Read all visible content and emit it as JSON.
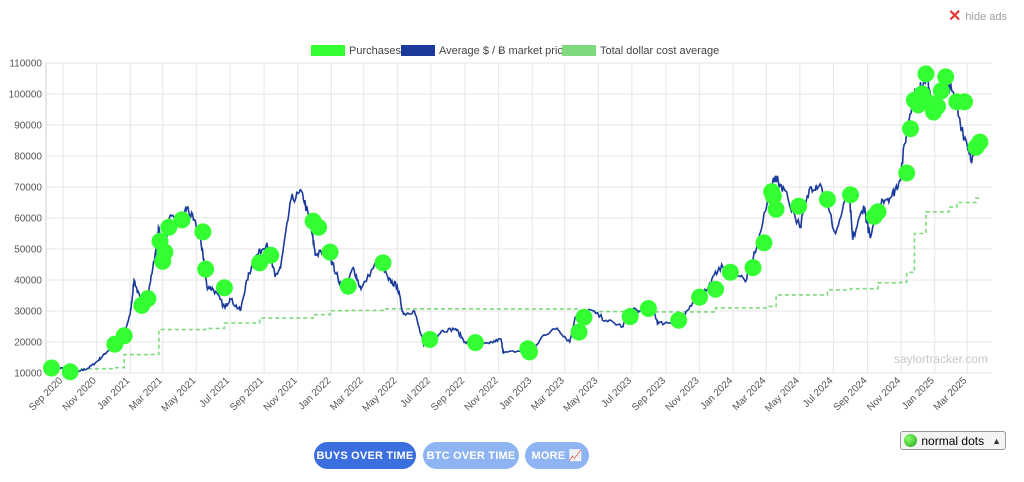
{
  "hide_ads": {
    "icon": "close-icon",
    "label": "hide ads"
  },
  "watermark": "saylortracker.com",
  "buttons": {
    "buys": "BUYS OVER TIME",
    "btc": "BTC OVER TIME",
    "more": "MORE 📈"
  },
  "dot_select": {
    "icon": "green-dot-icon",
    "value": "normal dots"
  },
  "colors": {
    "purchases": "#33ff33",
    "price": "#1a3a9c",
    "cost_avg": "#7fd97f",
    "grid": "#e6e6e6"
  },
  "chart_data": {
    "type": "line",
    "legend": [
      "Purchases",
      "Average $ / Ƀ market price",
      "Total dollar cost average"
    ],
    "legend_position": "top",
    "grid": true,
    "ylim": [
      10000,
      110000
    ],
    "yticks": [
      "10000",
      "20000",
      "30000",
      "40000",
      "50000",
      "60000",
      "70000",
      "80000",
      "90000",
      "100000",
      "110000"
    ],
    "xticks": [
      "Sep 2020",
      "Nov 2020",
      "Jan 2021",
      "Mar 2021",
      "May 2021",
      "Jul 2021",
      "Sep 2021",
      "Nov 2021",
      "Jan 2022",
      "Mar 2022",
      "May 2022",
      "Jul 2022",
      "Sep 2022",
      "Nov 2022",
      "Jan 2023",
      "Mar 2023",
      "May 2023",
      "Jul 2023",
      "Sep 2023",
      "Nov 2023",
      "Jan 2024",
      "Mar 2024",
      "May 2024",
      "Jul 2024",
      "Sep 2024",
      "Nov 2024",
      "Jan 2025",
      "Mar 2025"
    ],
    "series": [
      {
        "name": "Average $ / Ƀ market price",
        "points": [
          [
            "2020-08-15",
            11800
          ],
          [
            "2020-09-01",
            11500
          ],
          [
            "2020-09-15",
            10500
          ],
          [
            "2020-10-01",
            10600
          ],
          [
            "2020-10-15",
            11400
          ],
          [
            "2020-11-01",
            13600
          ],
          [
            "2020-11-15",
            16000
          ],
          [
            "2020-12-01",
            19000
          ],
          [
            "2020-12-15",
            19300
          ],
          [
            "2021-01-01",
            29000
          ],
          [
            "2021-01-08",
            40000
          ],
          [
            "2021-01-20",
            33000
          ],
          [
            "2021-02-01",
            34000
          ],
          [
            "2021-02-15",
            48000
          ],
          [
            "2021-02-22",
            57000
          ],
          [
            "2021-03-01",
            46000
          ],
          [
            "2021-03-13",
            60000
          ],
          [
            "2021-04-01",
            58000
          ],
          [
            "2021-04-14",
            63500
          ],
          [
            "2021-05-01",
            57000
          ],
          [
            "2021-05-12",
            50000
          ],
          [
            "2021-05-20",
            38000
          ],
          [
            "2021-06-01",
            37000
          ],
          [
            "2021-06-22",
            31000
          ],
          [
            "2021-07-01",
            34000
          ],
          [
            "2021-07-20",
            30000
          ],
          [
            "2021-08-01",
            40000
          ],
          [
            "2021-08-15",
            47000
          ],
          [
            "2021-09-06",
            52000
          ],
          [
            "2021-09-21",
            41000
          ],
          [
            "2021-10-01",
            44000
          ],
          [
            "2021-10-20",
            66000
          ],
          [
            "2021-11-10",
            68000
          ],
          [
            "2021-11-25",
            57000
          ],
          [
            "2021-12-04",
            48000
          ],
          [
            "2021-12-25",
            50000
          ],
          [
            "2022-01-10",
            42000
          ],
          [
            "2022-01-24",
            36000
          ],
          [
            "2022-02-10",
            44000
          ],
          [
            "2022-02-24",
            37000
          ],
          [
            "2022-03-28",
            47000
          ],
          [
            "2022-04-15",
            40000
          ],
          [
            "2022-05-01",
            38000
          ],
          [
            "2022-05-12",
            29000
          ],
          [
            "2022-06-01",
            30000
          ],
          [
            "2022-06-18",
            19000
          ],
          [
            "2022-07-01",
            19500
          ],
          [
            "2022-07-20",
            23500
          ],
          [
            "2022-08-15",
            24300
          ],
          [
            "2022-09-01",
            20000
          ],
          [
            "2022-09-20",
            19000
          ],
          [
            "2022-10-15",
            19500
          ],
          [
            "2022-11-05",
            21000
          ],
          [
            "2022-11-10",
            16500
          ],
          [
            "2022-12-15",
            17200
          ],
          [
            "2023-01-01",
            16500
          ],
          [
            "2023-01-20",
            22000
          ],
          [
            "2023-02-15",
            24500
          ],
          [
            "2023-03-10",
            20000
          ],
          [
            "2023-03-20",
            28000
          ],
          [
            "2023-04-14",
            30500
          ],
          [
            "2023-05-15",
            27000
          ],
          [
            "2023-06-15",
            25000
          ],
          [
            "2023-06-25",
            30500
          ],
          [
            "2023-07-15",
            30000
          ],
          [
            "2023-08-10",
            29500
          ],
          [
            "2023-08-18",
            26000
          ],
          [
            "2023-09-15",
            26500
          ],
          [
            "2023-10-01",
            27000
          ],
          [
            "2023-10-24",
            34500
          ],
          [
            "2023-11-15",
            37000
          ],
          [
            "2023-12-06",
            44000
          ],
          [
            "2024-01-01",
            44000
          ],
          [
            "2024-01-23",
            39500
          ],
          [
            "2024-02-15",
            52000
          ],
          [
            "2024-03-14",
            73000
          ],
          [
            "2024-04-01",
            70000
          ],
          [
            "2024-05-01",
            57000
          ],
          [
            "2024-05-20",
            70000
          ],
          [
            "2024-06-07",
            71000
          ],
          [
            "2024-07-05",
            55000
          ],
          [
            "2024-07-29",
            69000
          ],
          [
            "2024-08-05",
            53000
          ],
          [
            "2024-08-25",
            64000
          ],
          [
            "2024-09-06",
            53500
          ],
          [
            "2024-09-27",
            66000
          ],
          [
            "2024-10-15",
            67000
          ],
          [
            "2024-10-29",
            72000
          ],
          [
            "2024-11-12",
            89000
          ],
          [
            "2024-11-22",
            99000
          ],
          [
            "2024-12-05",
            101000
          ],
          [
            "2024-12-17",
            107000
          ],
          [
            "2024-12-30",
            93000
          ],
          [
            "2025-01-20",
            106000
          ],
          [
            "2025-02-01",
            101000
          ],
          [
            "2025-02-25",
            86000
          ],
          [
            "2025-03-10",
            79000
          ],
          [
            "2025-03-20",
            85000
          ],
          [
            "2025-03-28",
            84000
          ]
        ]
      },
      {
        "name": "Total dollar cost average",
        "points": [
          [
            "2020-08-15",
            11650
          ],
          [
            "2020-09-15",
            11400
          ],
          [
            "2020-12-04",
            11700
          ],
          [
            "2020-12-21",
            15950
          ],
          [
            "2021-02-01",
            16000
          ],
          [
            "2021-02-22",
            24000
          ],
          [
            "2021-05-18",
            24400
          ],
          [
            "2021-06-21",
            26100
          ],
          [
            "2021-08-24",
            27700
          ],
          [
            "2021-11-29",
            28800
          ],
          [
            "2021-12-30",
            30100
          ],
          [
            "2022-02-01",
            30200
          ],
          [
            "2022-04-05",
            30700
          ],
          [
            "2022-09-20",
            30670
          ],
          [
            "2023-03-27",
            29800
          ],
          [
            "2023-06-28",
            29700
          ],
          [
            "2023-11-30",
            31000
          ],
          [
            "2024-03-01",
            31500
          ],
          [
            "2024-03-19",
            35200
          ],
          [
            "2024-06-20",
            36800
          ],
          [
            "2024-08-01",
            37200
          ],
          [
            "2024-09-20",
            39100
          ],
          [
            "2024-10-31",
            39300
          ],
          [
            "2024-11-11",
            42500
          ],
          [
            "2024-11-25",
            55000
          ],
          [
            "2024-12-16",
            62000
          ],
          [
            "2025-01-27",
            63500
          ],
          [
            "2025-02-10",
            65000
          ],
          [
            "2025-03-17",
            66400
          ],
          [
            "2025-03-28",
            66400
          ]
        ]
      },
      {
        "name": "Purchases",
        "points": [
          [
            "2020-08-11",
            11600
          ],
          [
            "2020-09-14",
            10400
          ],
          [
            "2020-12-04",
            19300
          ],
          [
            "2020-12-21",
            22000
          ],
          [
            "2021-01-22",
            31800
          ],
          [
            "2021-02-02",
            34000
          ],
          [
            "2021-02-24",
            52500
          ],
          [
            "2021-03-01",
            46000
          ],
          [
            "2021-03-05",
            49000
          ],
          [
            "2021-03-12",
            57000
          ],
          [
            "2021-04-05",
            59400
          ],
          [
            "2021-05-13",
            55500
          ],
          [
            "2021-05-18",
            43500
          ],
          [
            "2021-06-21",
            37500
          ],
          [
            "2021-08-24",
            45500
          ],
          [
            "2021-09-13",
            48000
          ],
          [
            "2021-11-29",
            59000
          ],
          [
            "2021-12-09",
            57000
          ],
          [
            "2021-12-30",
            49000
          ],
          [
            "2022-02-01",
            38000
          ],
          [
            "2022-04-05",
            45500
          ],
          [
            "2022-06-29",
            20800
          ],
          [
            "2022-09-20",
            19800
          ],
          [
            "2022-12-24",
            17800
          ],
          [
            "2022-12-27",
            16800
          ],
          [
            "2023-03-27",
            23200
          ],
          [
            "2023-04-05",
            28000
          ],
          [
            "2023-06-28",
            28200
          ],
          [
            "2023-07-31",
            30800
          ],
          [
            "2023-09-24",
            27000
          ],
          [
            "2023-11-01",
            34500
          ],
          [
            "2023-11-30",
            37000
          ],
          [
            "2023-12-27",
            42500
          ],
          [
            "2024-02-06",
            44000
          ],
          [
            "2024-02-26",
            52000
          ],
          [
            "2024-03-11",
            68500
          ],
          [
            "2024-03-19",
            62800
          ],
          [
            "2024-03-14",
            67000
          ],
          [
            "2024-04-29",
            63800
          ],
          [
            "2024-06-20",
            66000
          ],
          [
            "2024-08-01",
            67500
          ],
          [
            "2024-09-13",
            60500
          ],
          [
            "2024-09-20",
            62000
          ],
          [
            "2024-11-11",
            74500
          ],
          [
            "2024-11-18",
            88800
          ],
          [
            "2024-11-25",
            98000
          ],
          [
            "2024-12-02",
            96500
          ],
          [
            "2024-12-09",
            100000
          ],
          [
            "2024-12-16",
            106500
          ],
          [
            "2024-12-23",
            97000
          ],
          [
            "2024-12-30",
            94200
          ],
          [
            "2025-01-06",
            96000
          ],
          [
            "2025-01-13",
            101000
          ],
          [
            "2025-01-21",
            105500
          ],
          [
            "2025-02-10",
            97500
          ],
          [
            "2025-02-24",
            97500
          ],
          [
            "2025-03-17",
            82800
          ],
          [
            "2025-03-24",
            84500
          ]
        ]
      }
    ]
  }
}
